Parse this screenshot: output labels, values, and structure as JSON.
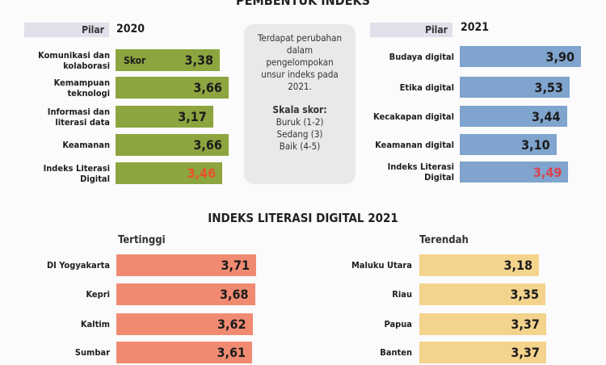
{
  "header": {
    "title": "PEMBENTUK INDEKS"
  },
  "colors": {
    "green": "#8da53f",
    "blue": "#7fa4cd",
    "salmon": "#f08b72",
    "yellow": "#f4d38d",
    "highlight_red": "#e8512c"
  },
  "note": {
    "text": "Terdapat perubahan dalam pengelompokan unsur indeks pada 2021.",
    "scale_title": "Skala skor:",
    "scale": [
      "Buruk (1-2)",
      "Sedang (3)",
      "Baik (4-5)"
    ]
  },
  "bottom": {
    "title": "INDEKS LITERASI DIGITAL 2021"
  },
  "chart_data": [
    {
      "type": "bar",
      "orientation": "horizontal",
      "header": "Pilar",
      "title": "2020",
      "value_label": "Skor",
      "categories": [
        "Komunikasi dan kolaborasi",
        "Kemampuan teknologi",
        "Informasi dan literasi data",
        "Keamanan",
        "Indeks Literasi Digital"
      ],
      "values": [
        3.38,
        3.66,
        3.17,
        3.66,
        3.46
      ],
      "labels": [
        "3,38",
        "3,66",
        "3,17",
        "3,66",
        "3,46"
      ],
      "color": "#8da53f"
    },
    {
      "type": "bar",
      "orientation": "horizontal",
      "header": "Pilar",
      "title": "2021",
      "categories": [
        "Budaya digital",
        "Etika digital",
        "Kecakapan digital",
        "Keamanan digital",
        "Indeks Literasi Digital"
      ],
      "values": [
        3.9,
        3.53,
        3.44,
        3.1,
        3.49
      ],
      "labels": [
        "3,90",
        "3,53",
        "3,44",
        "3,10",
        "3,49"
      ],
      "color": "#7fa4cd"
    },
    {
      "type": "bar",
      "orientation": "horizontal",
      "title": "Tertinggi",
      "categories": [
        "DI Yogyakarta",
        "Kepri",
        "Kaltim",
        "Sumbar"
      ],
      "values": [
        3.71,
        3.68,
        3.62,
        3.61
      ],
      "labels": [
        "3,71",
        "3,68",
        "3,62",
        "3,61"
      ],
      "color": "#f08b72"
    },
    {
      "type": "bar",
      "orientation": "horizontal",
      "title": "Terendah",
      "categories": [
        "Maluku Utara",
        "Riau",
        "Papua",
        "Banten"
      ],
      "values": [
        3.18,
        3.35,
        3.37,
        3.37
      ],
      "labels": [
        "3,18",
        "3,35",
        "3,37",
        "3,37"
      ],
      "color": "#f4d38d"
    }
  ]
}
